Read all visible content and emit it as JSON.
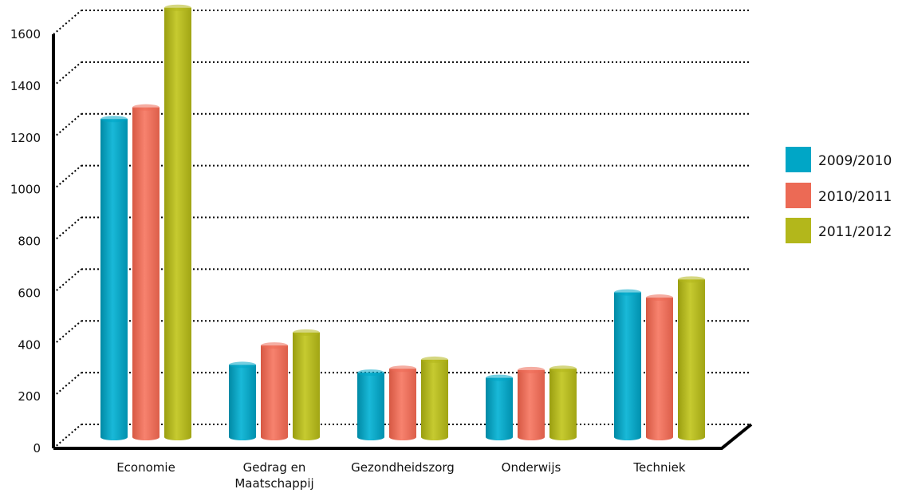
{
  "chart_data": {
    "type": "bar",
    "categories": [
      "Economie",
      "Gedrag en\nMaatschappij",
      "Gezondheidszorg",
      "Onderwijs",
      "Techniek"
    ],
    "series": [
      {
        "name": "2009/2010",
        "color": "#00a6c6",
        "values": [
          1180,
          230,
          200,
          180,
          510
        ]
      },
      {
        "name": "2010/2011",
        "color": "#ec6a55",
        "values": [
          1225,
          305,
          215,
          210,
          490
        ]
      },
      {
        "name": "2011/2012",
        "color": "#b3b71b",
        "values": [
          1610,
          355,
          250,
          215,
          560
        ]
      }
    ],
    "y_ticks": [
      0,
      200,
      400,
      600,
      800,
      1000,
      1200,
      1400,
      1600
    ],
    "ylim": [
      0,
      1600
    ],
    "title": "",
    "xlabel": "",
    "ylabel": "",
    "grid": true,
    "legend_position": "right"
  }
}
